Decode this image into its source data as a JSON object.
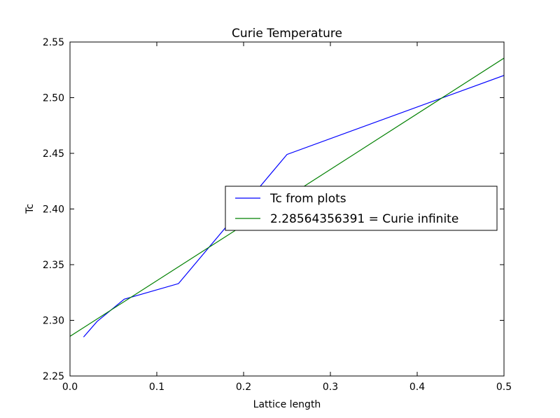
{
  "chart_data": {
    "type": "line",
    "title": "Curie Temperature",
    "xlabel": "Lattice length",
    "ylabel": "Tc",
    "xlim": [
      0.0,
      0.5
    ],
    "ylim": [
      2.25,
      2.55
    ],
    "x_ticks": [
      0.0,
      0.1,
      0.2,
      0.3,
      0.4,
      0.5
    ],
    "x_tick_labels": [
      "0.0",
      "0.1",
      "0.2",
      "0.3",
      "0.4",
      "0.5"
    ],
    "y_ticks": [
      2.25,
      2.3,
      2.35,
      2.4,
      2.45,
      2.5,
      2.55
    ],
    "y_tick_labels": [
      "2.25",
      "2.30",
      "2.35",
      "2.40",
      "2.45",
      "2.50",
      "2.55"
    ],
    "grid": false,
    "legend_position": "center-right",
    "series": [
      {
        "name": "Tc from plots",
        "color": "#0000ff",
        "x": [
          0.015625,
          0.03125,
          0.0625,
          0.125,
          0.25,
          0.5
        ],
        "y": [
          2.285,
          2.299,
          2.319,
          2.333,
          2.449,
          2.52
        ]
      },
      {
        "name": "2.28564356391 = Curie infinite",
        "color": "#008000",
        "x": [
          0.0,
          0.5
        ],
        "y": [
          2.2856,
          2.5355
        ]
      }
    ]
  }
}
